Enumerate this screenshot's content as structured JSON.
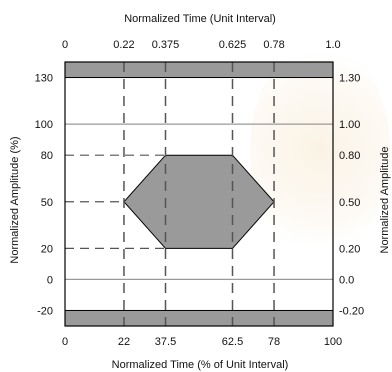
{
  "chart_data": {
    "type": "eye_mask",
    "top_axis": {
      "title": "Normalized Time (Unit Interval)",
      "ticks": [
        {
          "value": 0,
          "label": "0"
        },
        {
          "value": 22,
          "label": "0.22"
        },
        {
          "value": 37.5,
          "label": "0.375"
        },
        {
          "value": 62.5,
          "label": "0.625"
        },
        {
          "value": 78,
          "label": "0.78"
        },
        {
          "value": 100,
          "label": "1.0"
        }
      ]
    },
    "bottom_axis": {
      "title": "Normalized Time (% of Unit Interval)",
      "ticks": [
        {
          "value": 0,
          "label": "0"
        },
        {
          "value": 22,
          "label": "22"
        },
        {
          "value": 37.5,
          "label": "37.5"
        },
        {
          "value": 62.5,
          "label": "62.5"
        },
        {
          "value": 78,
          "label": "78"
        },
        {
          "value": 100,
          "label": "100"
        }
      ]
    },
    "left_axis": {
      "title": "Normalized Amplitude (%)",
      "ticks": [
        {
          "value": 130,
          "label": "130"
        },
        {
          "value": 100,
          "label": "100"
        },
        {
          "value": 80,
          "label": "80"
        },
        {
          "value": 50,
          "label": "50"
        },
        {
          "value": 20,
          "label": "20"
        },
        {
          "value": 0,
          "label": "0"
        },
        {
          "value": -20,
          "label": "-20"
        }
      ]
    },
    "right_axis": {
      "title": "Normalized Amplitude",
      "ticks": [
        {
          "value": 130,
          "label": "1.30"
        },
        {
          "value": 100,
          "label": "1.00"
        },
        {
          "value": 80,
          "label": "0.80"
        },
        {
          "value": 50,
          "label": "0.50"
        },
        {
          "value": 20,
          "label": "0.20"
        },
        {
          "value": 0,
          "label": "0.0"
        },
        {
          "value": -20,
          "label": "-0.20"
        }
      ]
    },
    "xlim": [
      0,
      100
    ],
    "ylim": [
      -30,
      140
    ],
    "mask_regions": {
      "upper_band": [
        130,
        140
      ],
      "lower_band": [
        -30,
        -20
      ],
      "hexagon": [
        [
          22,
          50
        ],
        [
          37.5,
          80
        ],
        [
          62.5,
          80
        ],
        [
          78,
          50
        ],
        [
          62.5,
          20
        ],
        [
          37.5,
          20
        ]
      ]
    },
    "reference_lines": [
      100,
      0
    ],
    "guide_verticals": [
      22,
      37.5,
      62.5,
      78
    ],
    "guide_horizontals": [
      80,
      50,
      20
    ],
    "colors": {
      "mask_fill": "#9a9a9a",
      "line": "#000000",
      "reference_line": "#999999",
      "guide": "#555555"
    }
  }
}
